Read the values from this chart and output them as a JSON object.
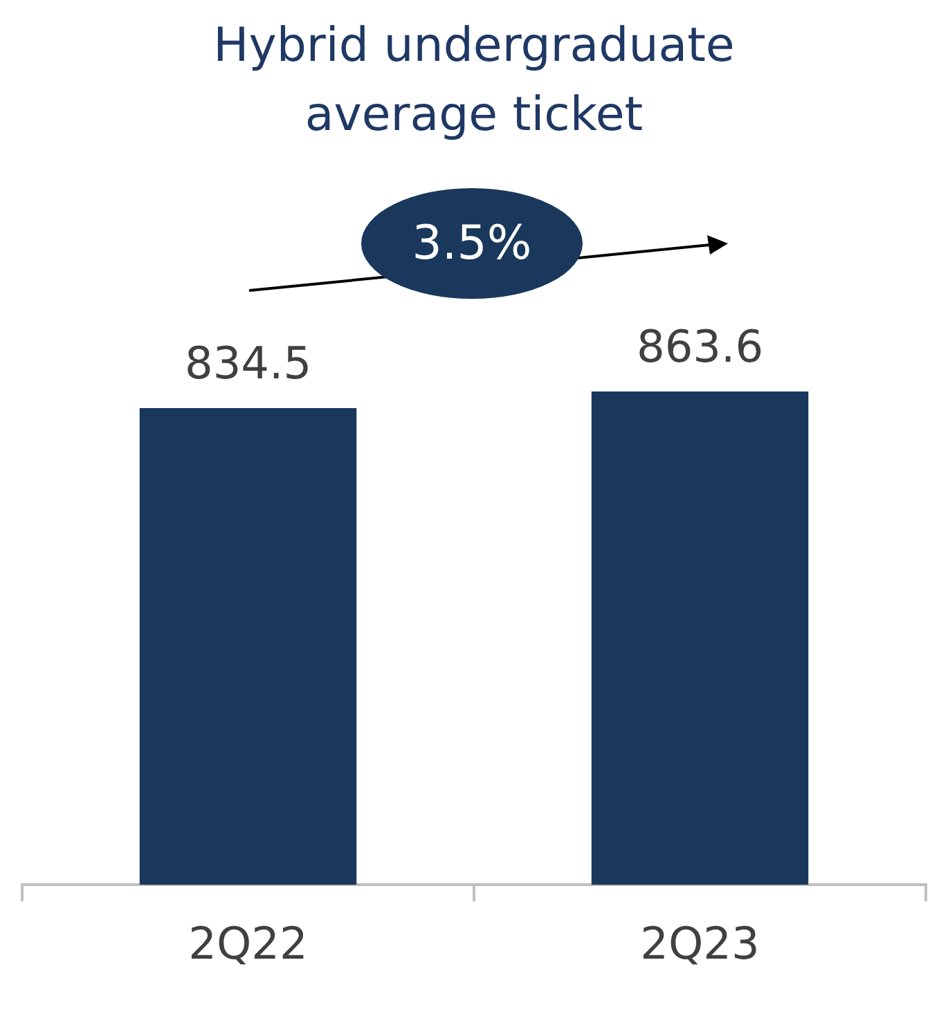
{
  "chart_data": {
    "type": "bar",
    "title": "Hybrid undergraduate average ticket",
    "categories": [
      "2Q22",
      "2Q23"
    ],
    "values": [
      834.5,
      863.6
    ],
    "color": "#1a375c",
    "data_labels": true,
    "grid": false,
    "legend": false,
    "annotations": [
      "3.5%"
    ]
  }
}
